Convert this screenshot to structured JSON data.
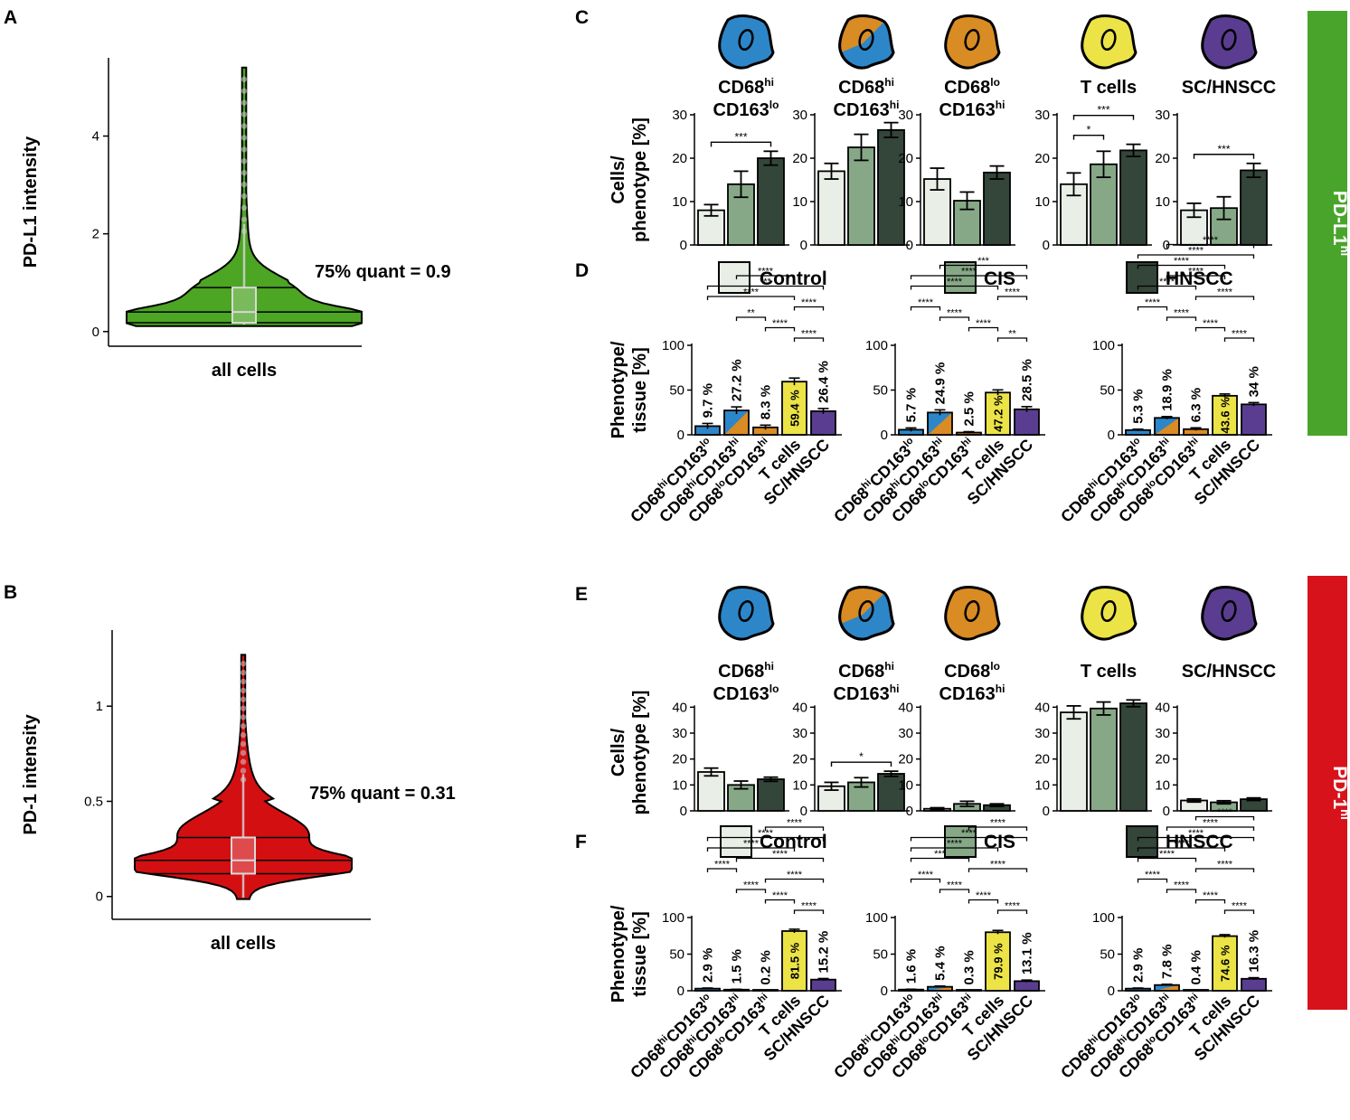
{
  "colors": {
    "control": "#e9efe7",
    "cis": "#86a887",
    "hnscc": "#34453a",
    "green_violin": "#4ca523",
    "red_violin": "#d40f12",
    "pdl1_band": "#49a42b",
    "pd1_band": "#d8121b",
    "blue": "#2d86c8",
    "orange": "#d98b24",
    "yellow": "#ece347",
    "purple": "#5a3d90"
  },
  "panel_labels": [
    "A",
    "B",
    "C",
    "D",
    "E",
    "F"
  ],
  "legend": [
    "Control",
    "CIS",
    "HNSCC"
  ],
  "side_bands": {
    "pdl1": {
      "main": "PD-L1",
      "sup": "hi"
    },
    "pd1": {
      "main": "PD-1",
      "sup": "hi"
    }
  },
  "phenotypes": [
    {
      "line1": "CD68",
      "sup1": "hi",
      "line2": "CD163",
      "sup2": "lo",
      "icon": "blue-cell-icon"
    },
    {
      "line1": "CD68",
      "sup1": "hi",
      "line2": "CD163",
      "sup2": "hi",
      "icon": "blue-orange-cell-icon"
    },
    {
      "line1": "CD68",
      "sup1": "lo",
      "line2": "CD163",
      "sup2": "hi",
      "icon": "orange-cell-icon"
    },
    {
      "line1": "T cells",
      "sup1": "",
      "line2": "",
      "sup2": "",
      "icon": "yellow-cell-icon"
    },
    {
      "line1": "SC/HNSCC",
      "sup1": "",
      "line2": "",
      "sup2": "",
      "icon": "purple-cell-icon"
    }
  ],
  "chart_data": [
    {
      "id": "A",
      "type": "violin",
      "ylabel": "PD-L1 intensity",
      "xlabel": "all cells",
      "yticks": [
        0,
        2,
        4
      ],
      "ylim": [
        -0.3,
        5.6
      ],
      "quartiles": [
        0.18,
        0.4,
        0.9
      ],
      "max": 5.4,
      "annotation": "75% quant = 0.9"
    },
    {
      "id": "B",
      "type": "violin",
      "ylabel": "PD-1 intensity",
      "xlabel": "all cells",
      "yticks": [
        0.0,
        0.5,
        1.0
      ],
      "ylim": [
        -0.12,
        1.4
      ],
      "quartiles": [
        0.12,
        0.19,
        0.31
      ],
      "max": 1.27,
      "annotation": "75% quant = 0.31"
    },
    {
      "id": "C",
      "type": "bar",
      "ylabel": [
        "Cells/",
        "phenotype [%]"
      ],
      "ylim": [
        0,
        30
      ],
      "yticks": [
        0,
        10,
        20,
        30
      ],
      "categories": [
        "Control",
        "CIS",
        "HNSCC"
      ],
      "groups": [
        {
          "name": "CD68hi CD163lo",
          "values": [
            8,
            14,
            20
          ],
          "errors": [
            1.3,
            3,
            1.6
          ],
          "sig": [
            {
              "a": 0,
              "b": 2,
              "label": "***"
            }
          ]
        },
        {
          "name": "CD68hi CD163hi",
          "values": [
            17,
            22.5,
            26.5
          ],
          "errors": [
            1.8,
            3,
            1.7
          ],
          "sig": []
        },
        {
          "name": "CD68lo CD163hi",
          "values": [
            15.2,
            10.2,
            16.7
          ],
          "errors": [
            2.5,
            2,
            1.5
          ],
          "sig": []
        },
        {
          "name": "T cells",
          "values": [
            14,
            18.6,
            21.8
          ],
          "errors": [
            2.6,
            3,
            1.4
          ],
          "sig": [
            {
              "a": 0,
              "b": 2,
              "label": "***"
            },
            {
              "a": 0,
              "b": 1,
              "label": "*"
            }
          ]
        },
        {
          "name": "SC/HNSCC",
          "values": [
            8,
            8.5,
            17.2
          ],
          "errors": [
            1.6,
            2.6,
            1.6
          ],
          "sig": [
            {
              "a": 0,
              "b": 2,
              "label": "***"
            }
          ]
        }
      ]
    },
    {
      "id": "D",
      "type": "bar",
      "ylabel": [
        "Phenotype/",
        "tissue [%]"
      ],
      "ylim": [
        0,
        100
      ],
      "yticks": [
        0,
        50,
        100
      ],
      "categories": [
        "CD68hiCD163lo",
        "CD68hiCD163hi",
        "CD68loCD163hi",
        "T cells",
        "SC/HNSCC"
      ],
      "groups": [
        {
          "name": "Control",
          "values": [
            9.7,
            27.2,
            8.3,
            59.4,
            26.4
          ],
          "labels": [
            "9.7 %",
            "27.2 %",
            "8.3 %",
            "59.4 %",
            "26.4 %"
          ],
          "errors": [
            3,
            4,
            2.5,
            4,
            3
          ],
          "sig": [
            {
              "a": 1,
              "b": 3,
              "label": "****"
            },
            {
              "a": 0,
              "b": 4,
              "label": "***"
            },
            {
              "a": 0,
              "b": 3,
              "label": "****"
            },
            {
              "a": 3,
              "b": 4,
              "label": "****"
            },
            {
              "a": 1,
              "b": 2,
              "label": "**"
            },
            {
              "a": 2,
              "b": 3,
              "label": "****"
            },
            {
              "a": 3,
              "b": 4,
              "label": "****"
            }
          ]
        },
        {
          "name": "CIS",
          "values": [
            5.7,
            24.9,
            2.5,
            47.2,
            28.5
          ],
          "labels": [
            "5.7 %",
            "24.9 %",
            "2.5 %",
            "47.2 %",
            "28.5 %"
          ],
          "errors": [
            2,
            3,
            1,
            3,
            3
          ],
          "sig": [
            {
              "a": 1,
              "b": 4,
              "label": "***"
            },
            {
              "a": 0,
              "b": 4,
              "label": "****"
            },
            {
              "a": 0,
              "b": 3,
              "label": "****"
            },
            {
              "a": 3,
              "b": 4,
              "label": "****"
            },
            {
              "a": 0,
              "b": 1,
              "label": "****"
            },
            {
              "a": 1,
              "b": 2,
              "label": "****"
            },
            {
              "a": 2,
              "b": 3,
              "label": "****"
            },
            {
              "a": 3,
              "b": 4,
              "label": "**"
            }
          ]
        },
        {
          "name": "HNSCC",
          "values": [
            5.3,
            18.9,
            6.3,
            43.6,
            34
          ],
          "labels": [
            "5.3 %",
            "18.9 %",
            "6.3 %",
            "43.6 %",
            "34 %"
          ],
          "errors": [
            1,
            1.5,
            1.5,
            2,
            2
          ],
          "sig": [
            {
              "a": 1,
              "b": 4,
              "label": "****"
            },
            {
              "a": 0,
              "b": 4,
              "label": "****"
            },
            {
              "a": 0,
              "b": 3,
              "label": "****"
            },
            {
              "a": 1,
              "b": 3,
              "label": "****"
            },
            {
              "a": 0,
              "b": 2,
              "label": "****"
            },
            {
              "a": 2,
              "b": 4,
              "label": "****"
            },
            {
              "a": 0,
              "b": 1,
              "label": "****"
            },
            {
              "a": 1,
              "b": 2,
              "label": "****"
            },
            {
              "a": 2,
              "b": 3,
              "label": "****"
            },
            {
              "a": 3,
              "b": 4,
              "label": "****"
            }
          ]
        }
      ]
    },
    {
      "id": "E",
      "type": "bar",
      "ylabel": [
        "Cells/",
        "phenotype [%]"
      ],
      "ylim": [
        0,
        45
      ],
      "yticks": [
        0,
        10,
        20,
        30,
        40
      ],
      "categories": [
        "Control",
        "CIS",
        "HNSCC"
      ],
      "groups": [
        {
          "name": "CD68hi CD163lo",
          "values": [
            15,
            10,
            12.2
          ],
          "errors": [
            1.5,
            1.5,
            0.8
          ],
          "sig": []
        },
        {
          "name": "CD68hi CD163hi",
          "values": [
            9.5,
            11,
            14.3
          ],
          "errors": [
            1.5,
            1.8,
            1
          ],
          "sig": [
            {
              "a": 0,
              "b": 2,
              "label": "*"
            }
          ]
        },
        {
          "name": "CD68lo CD163hi",
          "values": [
            0.8,
            2.7,
            2.2
          ],
          "errors": [
            0.4,
            1,
            0.5
          ],
          "sig": []
        },
        {
          "name": "T cells",
          "values": [
            38,
            39.5,
            41.5
          ],
          "errors": [
            2.5,
            2.5,
            1.3
          ],
          "sig": []
        },
        {
          "name": "SC/HNSCC",
          "values": [
            4,
            3.3,
            4.5
          ],
          "errors": [
            0.6,
            0.6,
            0.5
          ],
          "sig": []
        }
      ]
    },
    {
      "id": "F",
      "type": "bar",
      "ylabel": [
        "Phenotype/",
        "tissue [%]"
      ],
      "ylim": [
        0,
        100
      ],
      "yticks": [
        0,
        50,
        100
      ],
      "categories": [
        "CD68hiCD163lo",
        "CD68hiCD163hi",
        "CD68loCD163hi",
        "T cells",
        "SC/HNSCC"
      ],
      "groups": [
        {
          "name": "Control",
          "values": [
            2.9,
            1.5,
            0.2,
            81.5,
            15.2
          ],
          "labels": [
            "2.9 %",
            "1.5 %",
            "0.2 %",
            "81.5 %",
            "15.2 %"
          ],
          "errors": [
            0.8,
            0.5,
            0.2,
            2.5,
            1.5
          ],
          "sig": [
            {
              "a": 2,
              "b": 4,
              "label": "****"
            },
            {
              "a": 0,
              "b": 4,
              "label": "****"
            },
            {
              "a": 0,
              "b": 3,
              "label": "****"
            },
            {
              "a": 1,
              "b": 4,
              "label": "****"
            },
            {
              "a": 0,
              "b": 1,
              "label": "****"
            },
            {
              "a": 2,
              "b": 4,
              "label": "****"
            },
            {
              "a": 1,
              "b": 2,
              "label": "****"
            },
            {
              "a": 2,
              "b": 3,
              "label": "****"
            },
            {
              "a": 3,
              "b": 4,
              "label": "****"
            }
          ]
        },
        {
          "name": "CIS",
          "values": [
            1.6,
            5.4,
            0.3,
            79.9,
            13.1
          ],
          "labels": [
            "1.6 %",
            "5.4 %",
            "0.3 %",
            "79.9 %",
            "13.1 %"
          ],
          "errors": [
            0.5,
            1,
            0.2,
            2.5,
            1.5
          ],
          "sig": [
            {
              "a": 2,
              "b": 4,
              "label": "****"
            },
            {
              "a": 0,
              "b": 4,
              "label": "****"
            },
            {
              "a": 0,
              "b": 3,
              "label": "****"
            },
            {
              "a": 0,
              "b": 2,
              "label": "***"
            },
            {
              "a": 2,
              "b": 4,
              "label": "****"
            },
            {
              "a": 0,
              "b": 1,
              "label": "****"
            },
            {
              "a": 1,
              "b": 2,
              "label": "****"
            },
            {
              "a": 2,
              "b": 3,
              "label": "****"
            },
            {
              "a": 3,
              "b": 4,
              "label": "****"
            }
          ]
        },
        {
          "name": "HNSCC",
          "values": [
            2.9,
            7.8,
            0.4,
            74.6,
            16.3
          ],
          "labels": [
            "2.9 %",
            "7.8 %",
            "0.4 %",
            "74.6 %",
            "16.3 %"
          ],
          "errors": [
            0.8,
            1,
            0.2,
            2,
            1.5
          ],
          "sig": [
            {
              "a": 2,
              "b": 4,
              "label": "****"
            },
            {
              "a": 1,
              "b": 4,
              "label": "****"
            },
            {
              "a": 0,
              "b": 4,
              "label": "****"
            },
            {
              "a": 0,
              "b": 3,
              "label": "****"
            },
            {
              "a": 0,
              "b": 2,
              "label": "****"
            },
            {
              "a": 2,
              "b": 4,
              "label": "****"
            },
            {
              "a": 0,
              "b": 1,
              "label": "****"
            },
            {
              "a": 1,
              "b": 2,
              "label": "****"
            },
            {
              "a": 2,
              "b": 3,
              "label": "****"
            },
            {
              "a": 3,
              "b": 4,
              "label": "****"
            }
          ]
        }
      ]
    }
  ]
}
